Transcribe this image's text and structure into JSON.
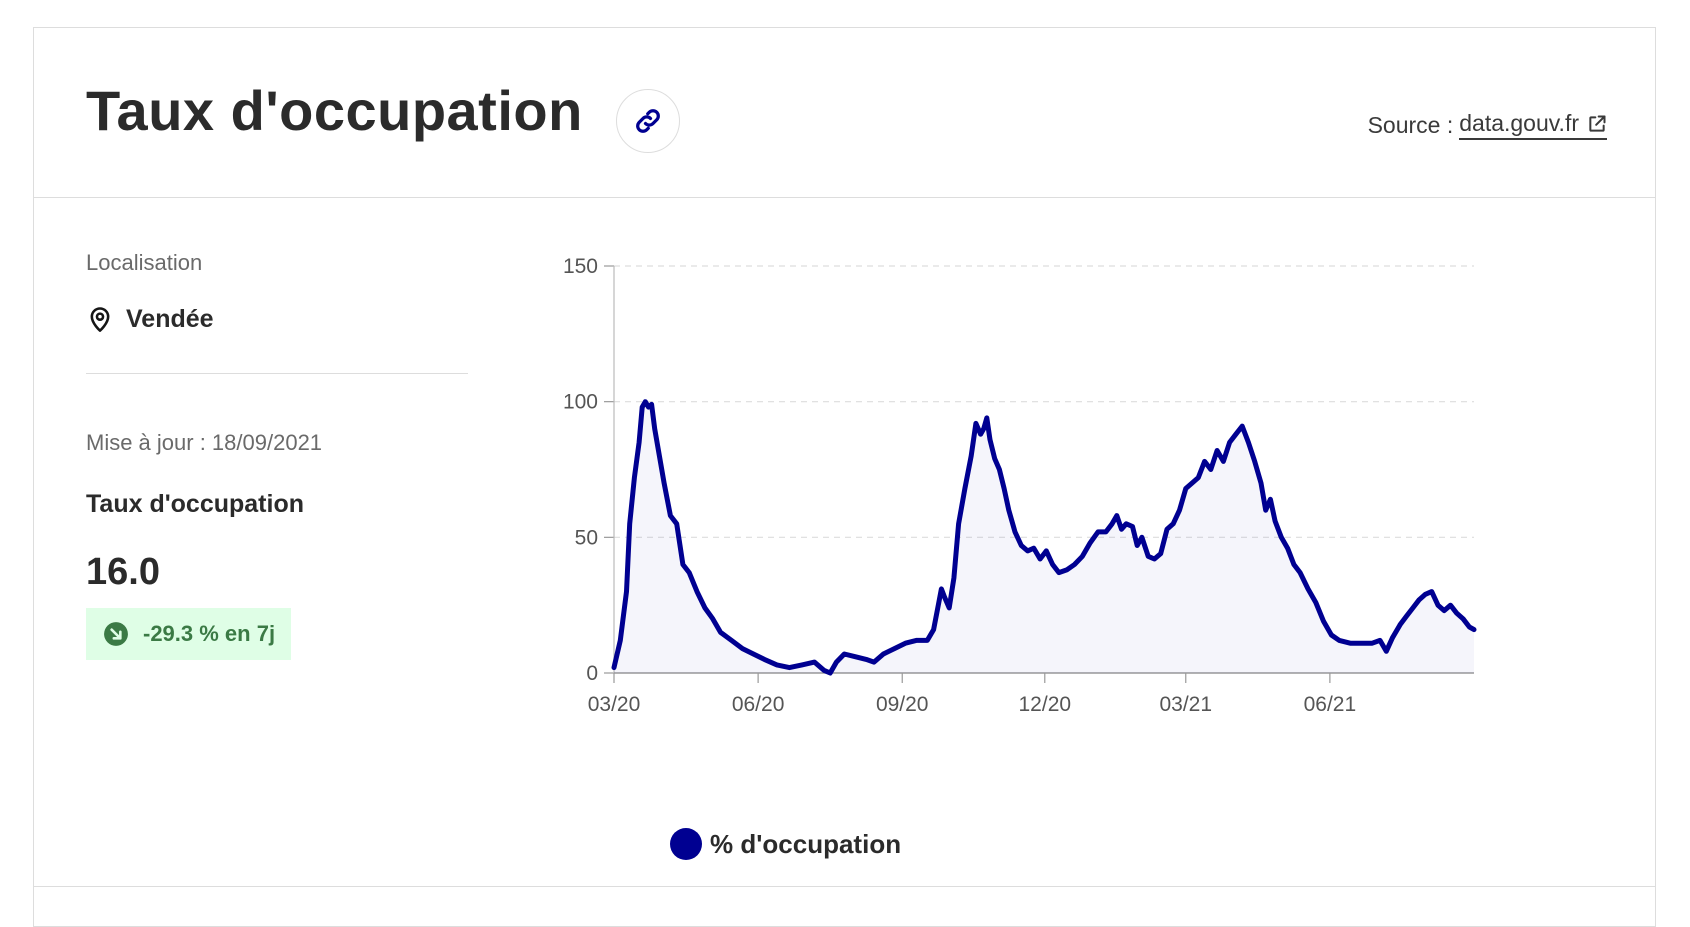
{
  "card": {
    "title": "Taux d'occupation",
    "link_icon": "link-icon",
    "source_label": "Source :",
    "source_link": "data.gouv.fr",
    "source_icon": "external-link-icon"
  },
  "panel": {
    "location_label": "Localisation",
    "location_icon": "map-pin-icon",
    "location_value": "Vendée",
    "update_text": "Mise à jour : 18/09/2021",
    "indicator_title": "Taux d'occupation",
    "indicator_value": "16.0",
    "trend_icon": "arrow-down-right-circle-icon",
    "trend_text": "-29.3 % en 7j"
  },
  "colors": {
    "series": "#000091",
    "badge_bg": "#dffee6",
    "badge_text": "#3b7a45",
    "grid": "#dddddd"
  },
  "chart_data": {
    "type": "area",
    "title": "",
    "xlabel": "",
    "ylabel": "",
    "ylim": [
      0,
      150
    ],
    "yticks": [
      0,
      50,
      100,
      150
    ],
    "xticks": [
      {
        "date": "2020-03-18",
        "label": "03/20"
      },
      {
        "date": "2020-06-18",
        "label": "06/20"
      },
      {
        "date": "2020-09-18",
        "label": "09/20"
      },
      {
        "date": "2020-12-18",
        "label": "12/20"
      },
      {
        "date": "2021-03-18",
        "label": "03/21"
      },
      {
        "date": "2021-06-18",
        "label": "06/21"
      }
    ],
    "grid": true,
    "legend_position": "bottom-left",
    "series": [
      {
        "name": "% d'occupation",
        "points": [
          [
            "2020-03-18",
            2
          ],
          [
            "2020-03-22",
            12
          ],
          [
            "2020-03-26",
            30
          ],
          [
            "2020-03-28",
            55
          ],
          [
            "2020-03-31",
            72
          ],
          [
            "2020-04-03",
            85
          ],
          [
            "2020-04-05",
            98
          ],
          [
            "2020-04-07",
            100
          ],
          [
            "2020-04-09",
            98
          ],
          [
            "2020-04-11",
            99
          ],
          [
            "2020-04-13",
            90
          ],
          [
            "2020-04-16",
            80
          ],
          [
            "2020-04-19",
            70
          ],
          [
            "2020-04-23",
            58
          ],
          [
            "2020-04-27",
            55
          ],
          [
            "2020-05-01",
            40
          ],
          [
            "2020-05-05",
            37
          ],
          [
            "2020-05-10",
            30
          ],
          [
            "2020-05-15",
            24
          ],
          [
            "2020-05-20",
            20
          ],
          [
            "2020-05-25",
            15
          ],
          [
            "2020-06-01",
            12
          ],
          [
            "2020-06-08",
            9
          ],
          [
            "2020-06-15",
            7
          ],
          [
            "2020-06-22",
            5
          ],
          [
            "2020-06-30",
            3
          ],
          [
            "2020-07-08",
            2
          ],
          [
            "2020-07-16",
            3
          ],
          [
            "2020-07-24",
            4
          ],
          [
            "2020-07-30",
            1
          ],
          [
            "2020-08-03",
            0
          ],
          [
            "2020-08-07",
            4
          ],
          [
            "2020-08-12",
            7
          ],
          [
            "2020-08-19",
            6
          ],
          [
            "2020-08-26",
            5
          ],
          [
            "2020-08-31",
            4
          ],
          [
            "2020-09-06",
            7
          ],
          [
            "2020-09-13",
            9
          ],
          [
            "2020-09-20",
            11
          ],
          [
            "2020-09-27",
            12
          ],
          [
            "2020-10-04",
            12
          ],
          [
            "2020-10-08",
            16
          ],
          [
            "2020-10-11",
            25
          ],
          [
            "2020-10-13",
            31
          ],
          [
            "2020-10-15",
            28
          ],
          [
            "2020-10-18",
            24
          ],
          [
            "2020-10-21",
            35
          ],
          [
            "2020-10-24",
            55
          ],
          [
            "2020-10-28",
            68
          ],
          [
            "2020-11-01",
            80
          ],
          [
            "2020-11-04",
            92
          ],
          [
            "2020-11-07",
            88
          ],
          [
            "2020-11-09",
            90
          ],
          [
            "2020-11-11",
            94
          ],
          [
            "2020-11-13",
            86
          ],
          [
            "2020-11-16",
            79
          ],
          [
            "2020-11-19",
            75
          ],
          [
            "2020-11-22",
            68
          ],
          [
            "2020-11-25",
            60
          ],
          [
            "2020-11-29",
            52
          ],
          [
            "2020-12-03",
            47
          ],
          [
            "2020-12-07",
            45
          ],
          [
            "2020-12-11",
            46
          ],
          [
            "2020-12-15",
            42
          ],
          [
            "2020-12-19",
            45
          ],
          [
            "2020-12-23",
            40
          ],
          [
            "2020-12-27",
            37
          ],
          [
            "2021-01-01",
            38
          ],
          [
            "2021-01-06",
            40
          ],
          [
            "2021-01-11",
            43
          ],
          [
            "2021-01-16",
            48
          ],
          [
            "2021-01-21",
            52
          ],
          [
            "2021-01-26",
            52
          ],
          [
            "2021-01-30",
            55
          ],
          [
            "2021-02-02",
            58
          ],
          [
            "2021-02-05",
            53
          ],
          [
            "2021-02-08",
            55
          ],
          [
            "2021-02-12",
            54
          ],
          [
            "2021-02-15",
            47
          ],
          [
            "2021-02-18",
            50
          ],
          [
            "2021-02-22",
            43
          ],
          [
            "2021-02-26",
            42
          ],
          [
            "2021-03-02",
            44
          ],
          [
            "2021-03-06",
            53
          ],
          [
            "2021-03-10",
            55
          ],
          [
            "2021-03-14",
            60
          ],
          [
            "2021-03-18",
            68
          ],
          [
            "2021-03-22",
            70
          ],
          [
            "2021-03-26",
            72
          ],
          [
            "2021-03-30",
            78
          ],
          [
            "2021-04-03",
            75
          ],
          [
            "2021-04-07",
            82
          ],
          [
            "2021-04-11",
            78
          ],
          [
            "2021-04-15",
            85
          ],
          [
            "2021-04-19",
            88
          ],
          [
            "2021-04-23",
            91
          ],
          [
            "2021-04-27",
            85
          ],
          [
            "2021-05-01",
            78
          ],
          [
            "2021-05-05",
            70
          ],
          [
            "2021-05-08",
            60
          ],
          [
            "2021-05-11",
            64
          ],
          [
            "2021-05-14",
            56
          ],
          [
            "2021-05-18",
            50
          ],
          [
            "2021-05-22",
            46
          ],
          [
            "2021-05-26",
            40
          ],
          [
            "2021-05-30",
            37
          ],
          [
            "2021-06-04",
            31
          ],
          [
            "2021-06-09",
            26
          ],
          [
            "2021-06-14",
            19
          ],
          [
            "2021-06-19",
            14
          ],
          [
            "2021-06-24",
            12
          ],
          [
            "2021-07-01",
            11
          ],
          [
            "2021-07-08",
            11
          ],
          [
            "2021-07-15",
            11
          ],
          [
            "2021-07-20",
            12
          ],
          [
            "2021-07-24",
            8
          ],
          [
            "2021-07-28",
            13
          ],
          [
            "2021-08-02",
            18
          ],
          [
            "2021-08-06",
            21
          ],
          [
            "2021-08-10",
            24
          ],
          [
            "2021-08-14",
            27
          ],
          [
            "2021-08-18",
            29
          ],
          [
            "2021-08-22",
            30
          ],
          [
            "2021-08-26",
            25
          ],
          [
            "2021-08-30",
            23
          ],
          [
            "2021-09-03",
            25
          ],
          [
            "2021-09-07",
            22
          ],
          [
            "2021-09-11",
            20
          ],
          [
            "2021-09-15",
            17
          ],
          [
            "2021-09-18",
            16
          ]
        ]
      }
    ]
  }
}
